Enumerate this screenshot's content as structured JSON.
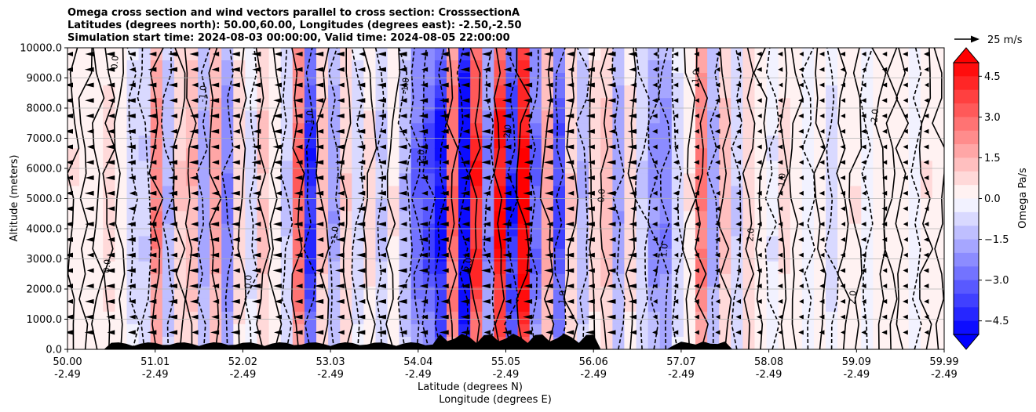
{
  "title_lines": [
    "Omega cross section and wind vectors parallel to cross section: CrosssectionA",
    "Latitudes (degrees north): 50.00,60.00, Longitudes (degrees east): -2.50,-2.50",
    "Simulation start time: 2024-08-03 00:00:00, Valid time: 2024-08-05 22:00:00"
  ],
  "chart_data": {
    "type": "heatmap",
    "title": "Omega cross section and wind vectors parallel to cross section: CrosssectionA",
    "ylabel": "Altitude (meters)",
    "xlabel_lines": [
      "Latitude (degrees N)",
      "Longitude (degrees E)"
    ],
    "ylim": [
      0,
      10000
    ],
    "y_ticks": [
      {
        "value": 0,
        "label": "0.0"
      },
      {
        "value": 1000,
        "label": "1000.0"
      },
      {
        "value": 2000,
        "label": "2000.0"
      },
      {
        "value": 3000,
        "label": "3000.0"
      },
      {
        "value": 4000,
        "label": "4000.0"
      },
      {
        "value": 5000,
        "label": "5000.0"
      },
      {
        "value": 6000,
        "label": "6000.0"
      },
      {
        "value": 7000,
        "label": "7000.0"
      },
      {
        "value": 8000,
        "label": "8000.0"
      },
      {
        "value": 9000,
        "label": "9000.0"
      },
      {
        "value": 10000,
        "label": "10000.0"
      }
    ],
    "x_ticks": [
      {
        "lat": "50.00",
        "lon": "-2.49"
      },
      {
        "lat": "51.01",
        "lon": "-2.49"
      },
      {
        "lat": "52.02",
        "lon": "-2.49"
      },
      {
        "lat": "53.03",
        "lon": "-2.49"
      },
      {
        "lat": "54.04",
        "lon": "-2.49"
      },
      {
        "lat": "55.05",
        "lon": "-2.49"
      },
      {
        "lat": "56.06",
        "lon": "-2.49"
      },
      {
        "lat": "57.07",
        "lon": "-2.49"
      },
      {
        "lat": "58.08",
        "lon": "-2.49"
      },
      {
        "lat": "59.09",
        "lon": "-2.49"
      },
      {
        "lat": "59.99",
        "lon": "-2.49"
      }
    ],
    "colorbar": {
      "label": "Omega Pa/s",
      "range": [
        -5,
        5
      ],
      "levels": 20,
      "tick_values": [
        4.5,
        3.0,
        1.5,
        0.0,
        -1.5,
        -3.0,
        -4.5
      ],
      "tick_labels": [
        "4.5",
        "3.0",
        "1.5",
        "0.0",
        "−1.5",
        "−3.0",
        "−4.5"
      ],
      "extend": "both"
    },
    "omega_columns": [
      0.4,
      0.3,
      0.2,
      0.5,
      0.1,
      -0.6,
      -0.8,
      2.0,
      -1.2,
      0.8,
      1.2,
      -1.5,
      1.5,
      -2.0,
      0.6,
      -0.5,
      0.9,
      0.3,
      -0.9,
      2.5,
      -3.5,
      1.0,
      -1.5,
      0.8,
      -0.6,
      0.5,
      -0.9,
      0.4,
      -1.2,
      -2.5,
      -3.0,
      -4.0,
      2.5,
      -5.0,
      3.5,
      -2.0,
      4.0,
      -3.5,
      4.5,
      -2.5,
      1.5,
      -3.0,
      0.8,
      -1.2,
      0.6,
      1.0,
      -1.5,
      0.5,
      -0.8,
      -1.8,
      -2.0,
      -0.6,
      0.4,
      2.2,
      -1.5,
      1.0,
      -0.8,
      0.7,
      0.3,
      -0.4,
      0.5,
      0.2,
      -0.3,
      0.3,
      -0.6,
      0.2,
      0.4,
      -0.3,
      0.2,
      0.1,
      0.3,
      -0.2,
      0.4,
      0.2
    ],
    "contour_labels": [
      "0.0",
      "-1.0",
      "1.0",
      "2.0",
      "-2.0"
    ],
    "wind_vector_key": "25 m/s"
  }
}
